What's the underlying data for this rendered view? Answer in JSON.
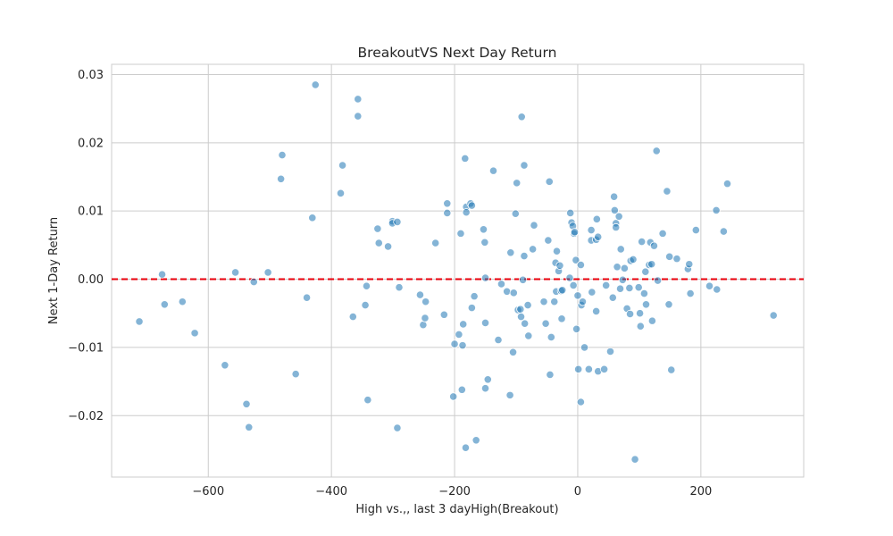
{
  "chart_data": {
    "type": "scatter",
    "title": "BreakoutVS Next Day Return",
    "xlabel": "High vs.,, last 3 dayHigh(Breakout)",
    "ylabel": "Next 1-Day Return",
    "xlim": [
      -757,
      367
    ],
    "ylim": [
      -0.029,
      0.0315
    ],
    "xticks": [
      -600,
      -400,
      -200,
      0,
      200
    ],
    "xtick_labels": [
      "−600",
      "−400",
      "−200",
      "0",
      "200"
    ],
    "yticks": [
      -0.02,
      -0.01,
      0.0,
      0.01,
      0.02,
      0.03
    ],
    "ytick_labels": [
      "−0.02",
      "−0.01",
      "0.00",
      "0.01",
      "0.02",
      "0.03"
    ],
    "grid": true,
    "point_color": "#1f77b4",
    "reference_line": {
      "y": 0.0,
      "style": "dashed",
      "color": "#e8000b"
    },
    "points": [
      [
        -712,
        -0.0062
      ],
      [
        -675,
        0.0007
      ],
      [
        -671,
        -0.0037
      ],
      [
        -642,
        -0.0033
      ],
      [
        -622,
        -0.0079
      ],
      [
        -573,
        -0.0126
      ],
      [
        -556,
        0.001
      ],
      [
        -538,
        -0.0183
      ],
      [
        -534,
        -0.0217
      ],
      [
        -526,
        -0.0004
      ],
      [
        -503,
        0.001
      ],
      [
        -482,
        0.0147
      ],
      [
        -480,
        0.0182
      ],
      [
        -458,
        -0.0139
      ],
      [
        -440,
        -0.0027
      ],
      [
        -431,
        0.009
      ],
      [
        -426,
        0.0285
      ],
      [
        -385,
        0.0126
      ],
      [
        -382,
        0.0167
      ],
      [
        -365,
        -0.0055
      ],
      [
        -357,
        0.0264
      ],
      [
        -357,
        0.0239
      ],
      [
        -345,
        -0.0038
      ],
      [
        -343,
        -0.001
      ],
      [
        -341,
        -0.0177
      ],
      [
        -325,
        0.0074
      ],
      [
        -323,
        0.0053
      ],
      [
        -308,
        0.0048
      ],
      [
        -301,
        0.0085
      ],
      [
        -301,
        0.0082
      ],
      [
        -293,
        0.0084
      ],
      [
        -293,
        -0.0218
      ],
      [
        -290,
        -0.0012
      ],
      [
        -256,
        -0.0023
      ],
      [
        -251,
        -0.0067
      ],
      [
        -248,
        -0.0057
      ],
      [
        -247,
        -0.0033
      ],
      [
        -231,
        0.0053
      ],
      [
        -217,
        -0.0052
      ],
      [
        -212,
        0.0111
      ],
      [
        -212,
        0.0097
      ],
      [
        -202,
        -0.0172
      ],
      [
        -200,
        -0.0095
      ],
      [
        -193,
        -0.0081
      ],
      [
        -190,
        0.0067
      ],
      [
        -188,
        -0.0162
      ],
      [
        -187,
        -0.0097
      ],
      [
        -186,
        -0.0066
      ],
      [
        -183,
        0.0177
      ],
      [
        -181,
        0.0106
      ],
      [
        -181,
        0.0098
      ],
      [
        -182,
        -0.0247
      ],
      [
        -174,
        0.0111
      ],
      [
        -172,
        0.0108
      ],
      [
        -172,
        -0.0042
      ],
      [
        -168,
        -0.0025
      ],
      [
        -165,
        -0.0236
      ],
      [
        -153,
        0.0073
      ],
      [
        -151,
        0.0054
      ],
      [
        -150,
        0.0002
      ],
      [
        -150,
        -0.0064
      ],
      [
        -150,
        -0.016
      ],
      [
        -146,
        -0.0147
      ],
      [
        -137,
        0.0159
      ],
      [
        -129,
        -0.0089
      ],
      [
        -124,
        -0.0007
      ],
      [
        -115,
        -0.0018
      ],
      [
        -109,
        0.0039
      ],
      [
        -110,
        -0.017
      ],
      [
        -105,
        -0.0107
      ],
      [
        -104,
        -0.002
      ],
      [
        -101,
        0.0096
      ],
      [
        -99,
        0.0141
      ],
      [
        -97,
        -0.0045
      ],
      [
        -93,
        -0.0044
      ],
      [
        -92,
        -0.0055
      ],
      [
        -91,
        0.0238
      ],
      [
        -89,
        -0.0001
      ],
      [
        -87,
        0.0167
      ],
      [
        -87,
        0.0034
      ],
      [
        -86,
        -0.0065
      ],
      [
        -81,
        -0.0038
      ],
      [
        -80,
        -0.0083
      ],
      [
        -73,
        0.0044
      ],
      [
        -71,
        0.0079
      ],
      [
        -55,
        -0.0033
      ],
      [
        -52,
        -0.0065
      ],
      [
        -48,
        0.0057
      ],
      [
        -46,
        0.0143
      ],
      [
        -45,
        -0.014
      ],
      [
        -43,
        -0.0085
      ],
      [
        -38,
        -0.0033
      ],
      [
        -36,
        0.0024
      ],
      [
        -35,
        -0.0018
      ],
      [
        -34,
        0.0041
      ],
      [
        -31,
        0.0012
      ],
      [
        -29,
        0.002
      ],
      [
        -27,
        -0.0017
      ],
      [
        -26,
        -0.0058
      ],
      [
        -25,
        -0.0016
      ],
      [
        -13,
        0.0002
      ],
      [
        -12,
        0.0097
      ],
      [
        -10,
        0.0083
      ],
      [
        -8,
        0.0078
      ],
      [
        -7,
        -0.0009
      ],
      [
        -6,
        0.0067
      ],
      [
        -5,
        0.0069
      ],
      [
        -3,
        0.0028
      ],
      [
        -2,
        -0.0073
      ],
      [
        0,
        -0.0024
      ],
      [
        1,
        -0.0132
      ],
      [
        5,
        0.0021
      ],
      [
        5,
        -0.018
      ],
      [
        6,
        -0.0038
      ],
      [
        8,
        -0.0033
      ],
      [
        11,
        -0.01
      ],
      [
        18,
        -0.0132
      ],
      [
        22,
        0.0072
      ],
      [
        22,
        0.0057
      ],
      [
        23,
        -0.0019
      ],
      [
        30,
        0.0058
      ],
      [
        30,
        -0.0047
      ],
      [
        31,
        0.0088
      ],
      [
        33,
        0.0062
      ],
      [
        33,
        -0.0135
      ],
      [
        43,
        -0.0132
      ],
      [
        46,
        -0.0009
      ],
      [
        53,
        -0.0106
      ],
      [
        57,
        -0.0027
      ],
      [
        59,
        0.0121
      ],
      [
        60,
        0.0101
      ],
      [
        62,
        0.0082
      ],
      [
        62,
        0.0076
      ],
      [
        64,
        0.0018
      ],
      [
        67,
        0.0092
      ],
      [
        69,
        -0.0014
      ],
      [
        70,
        0.0044
      ],
      [
        73,
        -0.0001
      ],
      [
        76,
        0.0016
      ],
      [
        80,
        -0.0043
      ],
      [
        84,
        -0.0013
      ],
      [
        85,
        -0.0051
      ],
      [
        86,
        0.0027
      ],
      [
        90,
        0.0029
      ],
      [
        93,
        -0.0264
      ],
      [
        99,
        -0.0012
      ],
      [
        101,
        -0.005
      ],
      [
        102,
        -0.0069
      ],
      [
        104,
        0.0055
      ],
      [
        108,
        -0.0021
      ],
      [
        110,
        0.0011
      ],
      [
        111,
        -0.0037
      ],
      [
        116,
        0.0021
      ],
      [
        118,
        0.0054
      ],
      [
        120,
        0.0022
      ],
      [
        121,
        -0.0061
      ],
      [
        124,
        0.0049
      ],
      [
        128,
        0.0188
      ],
      [
        130,
        -0.0002
      ],
      [
        138,
        0.0067
      ],
      [
        145,
        0.0129
      ],
      [
        148,
        -0.0037
      ],
      [
        149,
        0.0033
      ],
      [
        152,
        -0.0133
      ],
      [
        161,
        0.003
      ],
      [
        179,
        0.0015
      ],
      [
        181,
        0.0022
      ],
      [
        183,
        -0.0021
      ],
      [
        192,
        0.0072
      ],
      [
        214,
        -0.001
      ],
      [
        225,
        0.0101
      ],
      [
        226,
        -0.0015
      ],
      [
        237,
        0.007
      ],
      [
        243,
        0.014
      ],
      [
        318,
        -0.0053
      ]
    ]
  }
}
